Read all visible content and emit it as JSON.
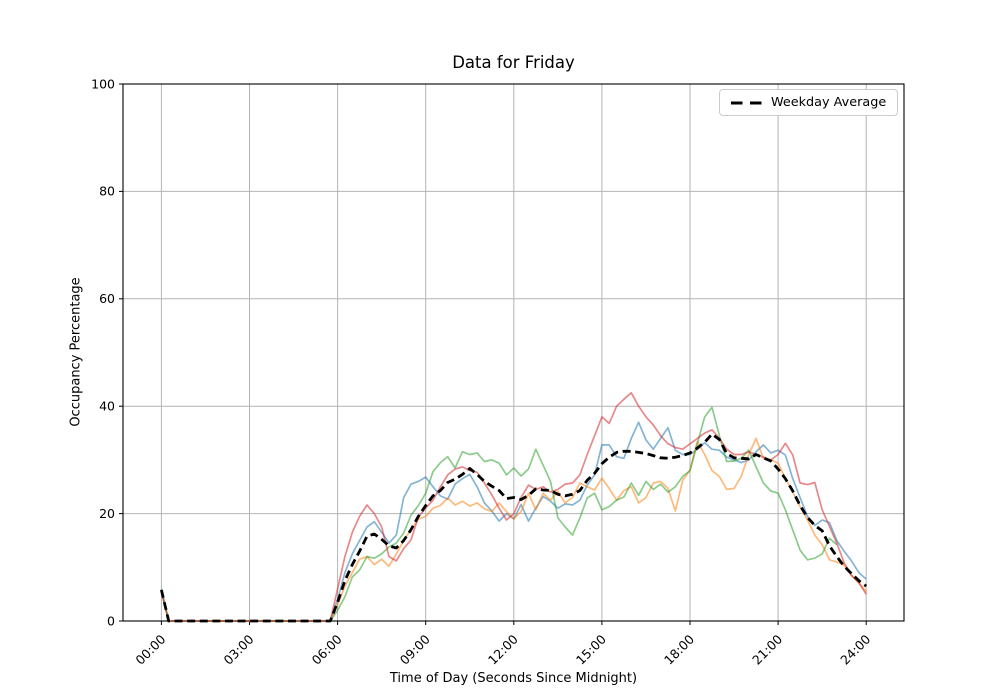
{
  "title": "Data for Friday",
  "axes": {
    "x_label": "Time of Day (Seconds Since Midnight)",
    "y_label": "Occupancy Percentage",
    "x_tick_hours": [
      0,
      3,
      6,
      9,
      12,
      15,
      18,
      21,
      24
    ],
    "x_tick_labels": [
      "00:00",
      "03:00",
      "06:00",
      "09:00",
      "12:00",
      "15:00",
      "18:00",
      "21:00",
      "24:00"
    ],
    "y_tick_values": [
      0,
      20,
      40,
      60,
      80,
      100
    ],
    "y_tick_labels": [
      "0",
      "20",
      "40",
      "60",
      "80",
      "100"
    ],
    "grid_color": "#b4b4b4",
    "spine_color": "#000000",
    "background": "#ffffff"
  },
  "legend": {
    "label": "Weekday Average",
    "line_color": "#000000",
    "line_style": "dashed",
    "position": "upper right"
  },
  "chart_data": {
    "type": "line",
    "title": "Data for Friday",
    "xlabel": "Time of Day (Seconds Since Midnight)",
    "ylabel": "Occupancy Percentage",
    "xlim_hours": [
      0,
      24
    ],
    "ylim": [
      0,
      100
    ],
    "grid": true,
    "legend_position": "upper right",
    "x_start_hours": 0,
    "x_step_hours": 0.25,
    "series": [
      {
        "name": "weekday-day-1",
        "color": "#1f77b4",
        "alpha": 0.55,
        "linewidth": 1.7,
        "dashed": false,
        "values": [
          5.5,
          0,
          0,
          0,
          0,
          0,
          0,
          0,
          0,
          0,
          0,
          0,
          0,
          0,
          0,
          0,
          0,
          0,
          0,
          0,
          0,
          0,
          0,
          0,
          4,
          9,
          12.5,
          15,
          17.5,
          18.5,
          16.5,
          14.5,
          16,
          23,
          25.5,
          26,
          26.8,
          25,
          23.3,
          22.7,
          25.5,
          26.5,
          27.3,
          25,
          22,
          20.5,
          18.6,
          20,
          19,
          21.7,
          18.6,
          21,
          23.2,
          22.3,
          21,
          21.8,
          21.6,
          22.5,
          25.3,
          27.2,
          32.8,
          32.8,
          30.6,
          30.3,
          34,
          37,
          33.7,
          32,
          34,
          36,
          31.8,
          31,
          31,
          32,
          33.2,
          32,
          31.8,
          30.5,
          30,
          29.5,
          30,
          31.5,
          32.8,
          31.3,
          31.8,
          30.9,
          26.5,
          23,
          19.5,
          17.8,
          18.8,
          18.3,
          15,
          13,
          11.2,
          9,
          7.8
        ]
      },
      {
        "name": "weekday-day-2",
        "color": "#ff7f0e",
        "alpha": 0.55,
        "linewidth": 1.7,
        "dashed": false,
        "values": [
          5.5,
          0,
          0,
          0,
          0,
          0,
          0,
          0,
          0,
          0,
          0,
          0,
          0,
          0,
          0,
          0,
          0,
          0,
          0,
          0,
          0,
          0,
          0,
          0,
          3,
          6.5,
          9,
          11.5,
          12,
          10.5,
          11.5,
          10.2,
          12.5,
          15,
          17,
          19,
          19.5,
          21,
          21.5,
          22.9,
          21.6,
          22.3,
          21.4,
          22,
          20.9,
          20.4,
          22,
          20.4,
          19,
          20.4,
          23.8,
          20.7,
          23.8,
          22.5,
          24.1,
          22,
          23,
          25.7,
          25,
          24.4,
          26.6,
          24.7,
          22.5,
          24.3,
          25,
          22,
          23,
          25.7,
          26,
          24.7,
          20.5,
          26.2,
          28.1,
          33.4,
          31,
          28,
          26.9,
          24.5,
          24.7,
          27,
          31,
          34,
          30.3,
          30,
          29.4,
          26.6,
          24,
          21.3,
          18.8,
          16,
          14.2,
          11.4,
          11,
          10.4,
          8.5,
          7.1,
          5.5
        ]
      },
      {
        "name": "weekday-day-3",
        "color": "#2ca02c",
        "alpha": 0.55,
        "linewidth": 1.7,
        "dashed": false,
        "values": [
          6,
          0,
          0,
          0,
          0,
          0,
          0,
          0,
          0,
          0,
          0,
          0,
          0,
          0,
          0,
          0,
          0,
          0,
          0,
          0,
          0,
          0,
          0,
          0,
          2,
          4.5,
          8.2,
          9.5,
          12,
          11.7,
          12.5,
          13.8,
          14.5,
          16.4,
          19.7,
          21.5,
          23.8,
          27.8,
          29.5,
          30.6,
          28.5,
          31.5,
          31,
          31.3,
          29.7,
          30,
          29.4,
          27.2,
          28.5,
          27,
          28.3,
          32,
          29,
          26,
          19.2,
          17.5,
          16,
          19.2,
          22.9,
          23.8,
          20.7,
          21.3,
          22.5,
          23.1,
          25.7,
          23.4,
          26,
          24.5,
          25.5,
          24,
          25,
          26.9,
          28,
          33,
          38,
          39.8,
          34.5,
          29.7,
          29.8,
          30.3,
          31.8,
          28.7,
          25.7,
          24.2,
          23.8,
          20.7,
          16.9,
          13.2,
          11.4,
          11.7,
          12.5,
          15.4,
          14.2,
          null,
          null,
          null,
          null
        ]
      },
      {
        "name": "weekday-day-4",
        "color": "#d62728",
        "alpha": 0.55,
        "linewidth": 1.7,
        "dashed": false,
        "values": [
          5.5,
          0,
          0,
          0,
          0,
          0,
          0,
          0,
          0,
          0,
          0,
          0,
          0,
          0,
          0,
          0,
          0,
          0,
          0,
          0,
          0,
          0,
          0,
          0,
          6,
          12,
          16.5,
          19.5,
          21.6,
          20,
          17.5,
          12,
          11.2,
          13.5,
          15.1,
          19.4,
          21,
          22.5,
          25,
          27.2,
          28.3,
          28.7,
          28,
          27.7,
          25.7,
          23.5,
          21,
          18.8,
          20,
          23,
          25.3,
          24.5,
          25,
          24,
          24.5,
          25.5,
          25.7,
          27.2,
          31,
          34.5,
          38,
          36.8,
          40,
          41.3,
          42.5,
          40,
          38,
          36.5,
          34.5,
          33,
          32.3,
          32,
          33,
          34,
          35,
          35.6,
          34,
          32,
          31,
          31,
          31.5,
          31,
          30.5,
          30,
          31,
          33.1,
          30.9,
          25.7,
          25.4,
          25.8,
          20.7,
          17.6,
          14.5,
          10.8,
          8.5,
          7.1,
          5
        ]
      },
      {
        "name": "Weekday Average",
        "color": "#000000",
        "alpha": 1,
        "linewidth": 2.8,
        "dashed": true,
        "values": [
          5.8,
          0,
          0,
          0,
          0,
          0,
          0,
          0,
          0,
          0,
          0,
          0,
          0,
          0,
          0,
          0,
          0,
          0,
          0,
          0,
          0,
          0,
          0,
          0,
          3.5,
          7.5,
          10.5,
          13,
          15.8,
          16.2,
          15.2,
          14,
          13.6,
          15,
          17,
          19.5,
          21.5,
          23.3,
          24.3,
          25.8,
          26.4,
          27.3,
          28.4,
          27.3,
          26,
          25.1,
          24.3,
          22.8,
          23,
          22.6,
          23.4,
          24.6,
          24.4,
          24.3,
          23.6,
          23.3,
          23.6,
          24.3,
          26.2,
          27.5,
          29.3,
          30.5,
          31.4,
          31.6,
          31.6,
          31.4,
          31.2,
          30.8,
          30.4,
          30.3,
          30.5,
          30.8,
          31.3,
          32.2,
          33.3,
          34.8,
          33.8,
          31.2,
          30.4,
          30.3,
          30.2,
          31,
          30.4,
          29.8,
          28.3,
          26.5,
          24.2,
          21.5,
          19.3,
          17.8,
          16.8,
          14,
          12,
          10.2,
          8.8,
          7.5,
          6.5
        ]
      }
    ]
  }
}
